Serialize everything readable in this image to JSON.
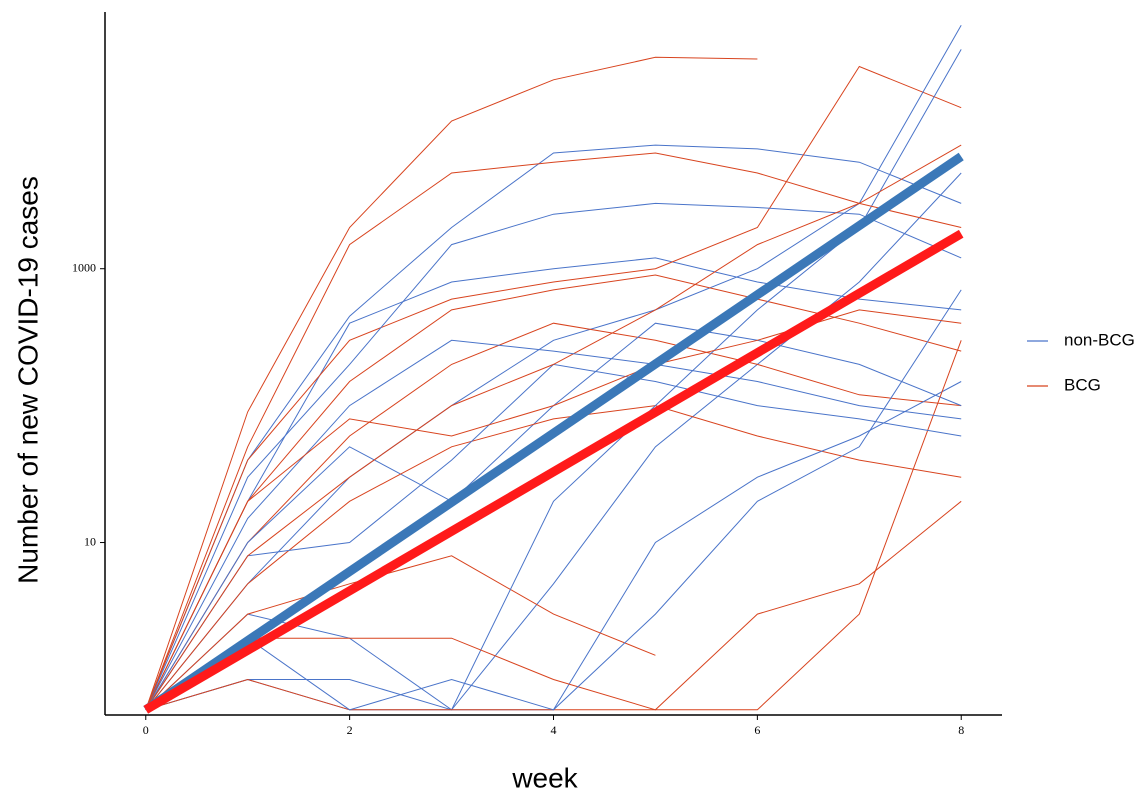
{
  "chart_data": {
    "type": "line",
    "x_label": "week",
    "y_label": "Number of new COVID-19 cases",
    "log_y": true,
    "xlim": [
      -0.4,
      8.4
    ],
    "ylim": [
      0.55,
      75000
    ],
    "xticks": [
      0,
      2,
      4,
      6,
      8
    ],
    "yticks": [
      10,
      1000
    ],
    "x": [
      0,
      1,
      2,
      3,
      4,
      5,
      6,
      7,
      8
    ],
    "series": [
      {
        "name": "non-BCG",
        "color": "#4a74c9",
        "fit_color": "#3b78b8",
        "fit_x": [
          0,
          8
        ],
        "fit": [
          0.6,
          6600
        ],
        "lines": [
          [
            0.6,
            40,
            450,
            2000,
            7000,
            8000,
            7500,
            6000,
            3000
          ],
          [
            0.6,
            20,
            400,
            800,
            1000,
            1200,
            800,
            600,
            500
          ],
          [
            0.6,
            5,
            30,
            100,
            300,
            500,
            1000,
            3000,
            60000
          ],
          [
            0.6,
            1,
            0.6,
            0.6,
            5,
            50,
            200,
            800,
            5000
          ],
          [
            0.6,
            10,
            50,
            20,
            100,
            400,
            300,
            200,
            100
          ],
          [
            0.6,
            3,
            2,
            0.6,
            0.6,
            10,
            30,
            60,
            150
          ],
          [
            0.6,
            1,
            1,
            0.6,
            20,
            100,
            500,
            2000,
            40000
          ],
          [
            0.6,
            30,
            200,
            1500,
            2500,
            3000,
            2800,
            2500,
            1200
          ],
          [
            0.6,
            8,
            10,
            40,
            200,
            150,
            100,
            80,
            60
          ],
          [
            0.6,
            2,
            0.6,
            1,
            0.6,
            3,
            20,
            50,
            700
          ],
          [
            0.6,
            15,
            100,
            300,
            250,
            200,
            150,
            100,
            80
          ]
        ]
      },
      {
        "name": "BCG",
        "color": "#d8441f",
        "fit_color": "#ff1a1a",
        "fit_x": [
          0,
          8
        ],
        "fit": [
          0.6,
          1800
        ],
        "lines": [
          [
            0.6,
            90,
            2000,
            12000,
            24000,
            35000,
            34000,
            null,
            null
          ],
          [
            0.6,
            40,
            300,
            600,
            800,
            1000,
            2000,
            30000,
            15000
          ],
          [
            0.6,
            20,
            150,
            500,
            700,
            900,
            600,
            400,
            250
          ],
          [
            0.6,
            10,
            60,
            200,
            400,
            300,
            200,
            120,
            100
          ],
          [
            0.6,
            5,
            20,
            50,
            80,
            100,
            60,
            40,
            30
          ],
          [
            0.6,
            3,
            5,
            8,
            3,
            1.5,
            null,
            null,
            null
          ],
          [
            0.6,
            2,
            2,
            2,
            1,
            0.6,
            3,
            5,
            20
          ],
          [
            0.6,
            1,
            0.6,
            0.6,
            0.6,
            0.6,
            0.6,
            3,
            300
          ],
          [
            0.6,
            50,
            1500,
            5000,
            6000,
            7000,
            5000,
            3000,
            2000
          ],
          [
            0.6,
            8,
            30,
            100,
            200,
            500,
            1500,
            3000,
            8000
          ],
          [
            0.6,
            20,
            80,
            60,
            100,
            200,
            300,
            500,
            400
          ]
        ]
      }
    ]
  }
}
